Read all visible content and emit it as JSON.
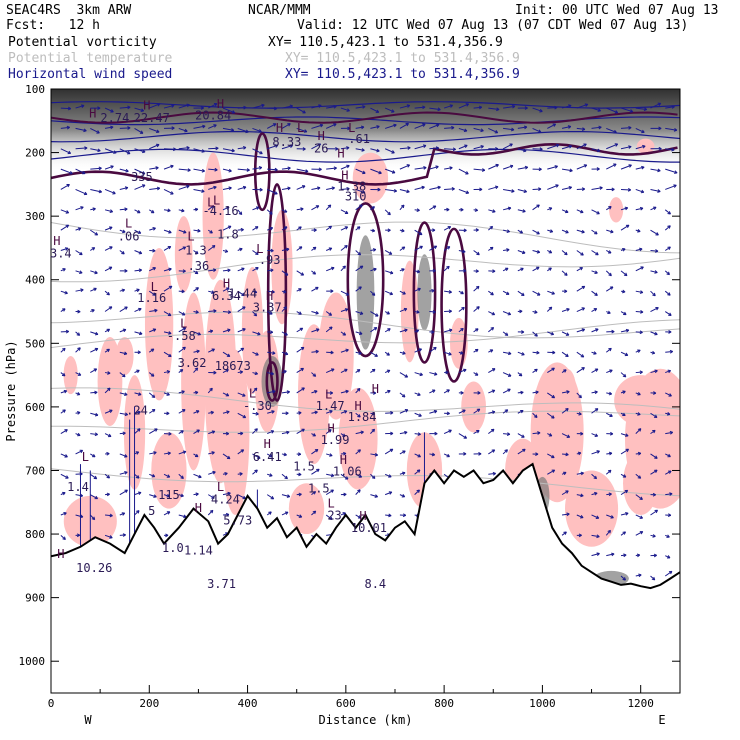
{
  "header": {
    "model": "SEAC4RS  3km ARW",
    "center": "NCAR/MMM",
    "init": "Init: 00 UTC Wed 07 Aug 13",
    "fcst": "Fcst:   12 h",
    "valid": "Valid: 12 UTC Wed 07 Aug 13 (07 CDT Wed 07 Aug 13)",
    "fields": [
      {
        "name": "Potential vorticity",
        "xy": "XY= 110.5,423.1 to 531.4,356.9",
        "color": "#000000"
      },
      {
        "name": "Potential temperature",
        "xy": "XY= 110.5,423.1 to 531.4,356.9",
        "color": "#bdbdbd"
      },
      {
        "name": "Horizontal wind speed",
        "xy": "XY= 110.5,423.1 to 531.4,356.9",
        "color": "#1a1a8c"
      }
    ]
  },
  "colors": {
    "pv_contour": "#4a0a40",
    "theta": "#bdbdbd",
    "wind": "#1a1a8c",
    "pink": "#ffc0c0",
    "terrain": "#000000"
  },
  "chart_data": {
    "type": "cross-section",
    "xlabel": "Distance (km)",
    "ylabel": "Pressure (hPa)",
    "xlim": [
      0,
      1280
    ],
    "ylim": [
      1050,
      100
    ],
    "xticks": [
      0,
      200,
      400,
      600,
      800,
      1000,
      1200
    ],
    "yticks": [
      100,
      200,
      300,
      400,
      500,
      600,
      700,
      800,
      900,
      1000
    ],
    "x_end_labels": {
      "left": "W",
      "right": "E"
    },
    "terrain": [
      [
        0,
        835
      ],
      [
        30,
        830
      ],
      [
        60,
        820
      ],
      [
        90,
        805
      ],
      [
        120,
        815
      ],
      [
        150,
        830
      ],
      [
        170,
        800
      ],
      [
        190,
        770
      ],
      [
        210,
        790
      ],
      [
        230,
        815
      ],
      [
        260,
        790
      ],
      [
        290,
        760
      ],
      [
        320,
        780
      ],
      [
        340,
        815
      ],
      [
        360,
        800
      ],
      [
        380,
        770
      ],
      [
        400,
        740
      ],
      [
        420,
        760
      ],
      [
        440,
        790
      ],
      [
        460,
        775
      ],
      [
        480,
        805
      ],
      [
        500,
        790
      ],
      [
        520,
        820
      ],
      [
        540,
        800
      ],
      [
        560,
        815
      ],
      [
        580,
        790
      ],
      [
        600,
        770
      ],
      [
        620,
        790
      ],
      [
        640,
        770
      ],
      [
        660,
        800
      ],
      [
        680,
        810
      ],
      [
        700,
        790
      ],
      [
        720,
        780
      ],
      [
        740,
        800
      ],
      [
        760,
        720
      ],
      [
        780,
        700
      ],
      [
        800,
        720
      ],
      [
        820,
        700
      ],
      [
        840,
        710
      ],
      [
        860,
        700
      ],
      [
        880,
        720
      ],
      [
        900,
        715
      ],
      [
        920,
        700
      ],
      [
        940,
        720
      ],
      [
        960,
        700
      ],
      [
        980,
        690
      ],
      [
        1000,
        740
      ],
      [
        1020,
        790
      ],
      [
        1040,
        815
      ],
      [
        1060,
        830
      ],
      [
        1080,
        850
      ],
      [
        1100,
        860
      ],
      [
        1120,
        870
      ],
      [
        1140,
        875
      ],
      [
        1160,
        880
      ],
      [
        1180,
        878
      ],
      [
        1200,
        882
      ],
      [
        1220,
        885
      ],
      [
        1240,
        880
      ],
      [
        1260,
        870
      ],
      [
        1280,
        860
      ]
    ],
    "labels": [
      {
        "text": "L",
        "x": 325,
        "p": 285
      },
      {
        "text": "1.8",
        "x": 360,
        "p": 335
      },
      {
        "text": "L",
        "x": 70,
        "p": 685
      },
      {
        "text": "1.4",
        "x": 55,
        "p": 732
      },
      {
        "text": "L",
        "x": 158,
        "p": 318
      },
      {
        "text": ".06",
        "x": 158,
        "p": 338
      },
      {
        "text": "H",
        "x": 12,
        "p": 345
      },
      {
        "text": "3.4",
        "x": 20,
        "p": 365
      },
      {
        "text": "L",
        "x": 210,
        "p": 418
      },
      {
        "text": "1.16",
        "x": 205,
        "p": 435
      },
      {
        "text": "L",
        "x": 270,
        "p": 475
      },
      {
        "text": "-.58",
        "x": 265,
        "p": 495
      },
      {
        "text": ".24",
        "x": 175,
        "p": 612
      },
      {
        "text": "L",
        "x": 285,
        "p": 338
      },
      {
        "text": "1.3",
        "x": 295,
        "p": 360
      },
      {
        "text": ".36",
        "x": 300,
        "p": 385
      },
      {
        "text": "3.62",
        "x": 287,
        "p": 537
      },
      {
        "text": "-4.16",
        "x": 345,
        "p": 298
      },
      {
        "text": "L",
        "x": 337,
        "p": 282
      },
      {
        "text": "H",
        "x": 357,
        "p": 412
      },
      {
        "text": "6.34",
        "x": 357,
        "p": 432
      },
      {
        "text": "1.44",
        "x": 390,
        "p": 428
      },
      {
        "text": "18673",
        "x": 370,
        "p": 542
      },
      {
        "text": "L",
        "x": 425,
        "p": 358
      },
      {
        "text": ".93",
        "x": 445,
        "p": 375
      },
      {
        "text": "H",
        "x": 445,
        "p": 432
      },
      {
        "text": "3.37",
        "x": 440,
        "p": 450
      },
      {
        "text": "L",
        "x": 410,
        "p": 585
      },
      {
        "text": "-.30",
        "x": 420,
        "p": 605
      },
      {
        "text": "H",
        "x": 440,
        "p": 665
      },
      {
        "text": "6.41",
        "x": 440,
        "p": 685
      },
      {
        "text": "L",
        "x": 345,
        "p": 732
      },
      {
        "text": "4.24",
        "x": 355,
        "p": 752
      },
      {
        "text": "H",
        "x": 300,
        "p": 765
      },
      {
        "text": "5.73",
        "x": 380,
        "p": 785
      },
      {
        "text": "1.14",
        "x": 300,
        "p": 832
      },
      {
        "text": "3.71",
        "x": 347,
        "p": 885
      },
      {
        "text": "1.5",
        "x": 515,
        "p": 700
      },
      {
        "text": "1.5",
        "x": 545,
        "p": 735
      },
      {
        "text": "L",
        "x": 565,
        "p": 587
      },
      {
        "text": "1.47",
        "x": 568,
        "p": 605
      },
      {
        "text": "H",
        "x": 570,
        "p": 640
      },
      {
        "text": "1.99",
        "x": 578,
        "p": 658
      },
      {
        "text": "H",
        "x": 625,
        "p": 605
      },
      {
        "text": "1.84",
        "x": 633,
        "p": 622
      },
      {
        "text": "H",
        "x": 595,
        "p": 690
      },
      {
        "text": "1.06",
        "x": 603,
        "p": 708
      },
      {
        "text": "L",
        "x": 570,
        "p": 758
      },
      {
        "text": "23",
        "x": 577,
        "p": 777
      },
      {
        "text": "H",
        "x": 635,
        "p": 778
      },
      {
        "text": "10.01",
        "x": 647,
        "p": 797
      },
      {
        "text": "H",
        "x": 660,
        "p": 578
      },
      {
        "text": "8.4",
        "x": 660,
        "p": 885
      },
      {
        "text": "H",
        "x": 598,
        "p": 242
      },
      {
        "text": "1.38",
        "x": 612,
        "p": 260
      },
      {
        "text": "H",
        "x": 590,
        "p": 208
      },
      {
        "text": "H",
        "x": 20,
        "p": 838
      },
      {
        "text": "10.26",
        "x": 88,
        "p": 860
      },
      {
        "text": "H",
        "x": 85,
        "p": 145
      },
      {
        "text": "2.74",
        "x": 130,
        "p": 152
      },
      {
        "text": "H",
        "x": 195,
        "p": 132
      },
      {
        "text": "22.47",
        "x": 205,
        "p": 152
      },
      {
        "text": "H",
        "x": 345,
        "p": 130
      },
      {
        "text": "20.84",
        "x": 330,
        "p": 148
      },
      {
        "text": "L",
        "x": 508,
        "p": 168
      },
      {
        "text": "H",
        "x": 465,
        "p": 168
      },
      {
        "text": "8.33",
        "x": 480,
        "p": 190
      },
      {
        "text": "H",
        "x": 550,
        "p": 180
      },
      {
        "text": "26",
        "x": 550,
        "p": 200
      },
      {
        "text": "L",
        "x": 612,
        "p": 168
      },
      {
        "text": ".61",
        "x": 627,
        "p": 185
      },
      {
        "text": "310",
        "x": 620,
        "p": 275
      },
      {
        "text": "335",
        "x": 185,
        "p": 245
      },
      {
        "text": "5",
        "x": 205,
        "p": 770
      },
      {
        "text": "115",
        "x": 240,
        "p": 745
      },
      {
        "text": "1.0",
        "x": 248,
        "p": 828
      }
    ]
  }
}
